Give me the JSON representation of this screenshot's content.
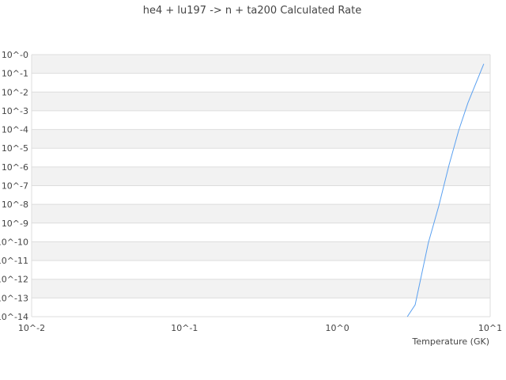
{
  "chart_data": {
    "type": "line",
    "title": "he4 + lu197 -> n + ta200 Calculated Rate",
    "xlabel": "Temperature (GK)",
    "ylabel": "",
    "xscale": "log",
    "yscale": "log",
    "xlim": [
      0.01,
      10
    ],
    "ylim": [
      1e-14,
      1
    ],
    "x_tick_labels": [
      "10^-2",
      "10^-1",
      "10^0",
      "10^1"
    ],
    "y_tick_labels": [
      "10^-0",
      "10^-1",
      "10^-2",
      "10^-3",
      "10^-4",
      "10^-5",
      "10^-6",
      "10^-7",
      "10^-8",
      "10^-9",
      "10^-10",
      "10^-11",
      "10^-12",
      "10^-13",
      "10^-14"
    ],
    "grid": "horizontal alternating bands",
    "legend": "none",
    "colors": {
      "line": "#5aa0f0",
      "band": "#f2f2f2",
      "grid": "#dddddd"
    },
    "series": [
      {
        "x": [
          2.87,
          3.23,
          3.94,
          4.61,
          5.38,
          6.22,
          7.15,
          9.08
        ],
        "y": [
          1e-14,
          4.3e-14,
          8.9e-11,
          8.3e-09,
          1.3e-06,
          8.7e-05,
          0.0026,
          0.32
        ]
      }
    ]
  }
}
